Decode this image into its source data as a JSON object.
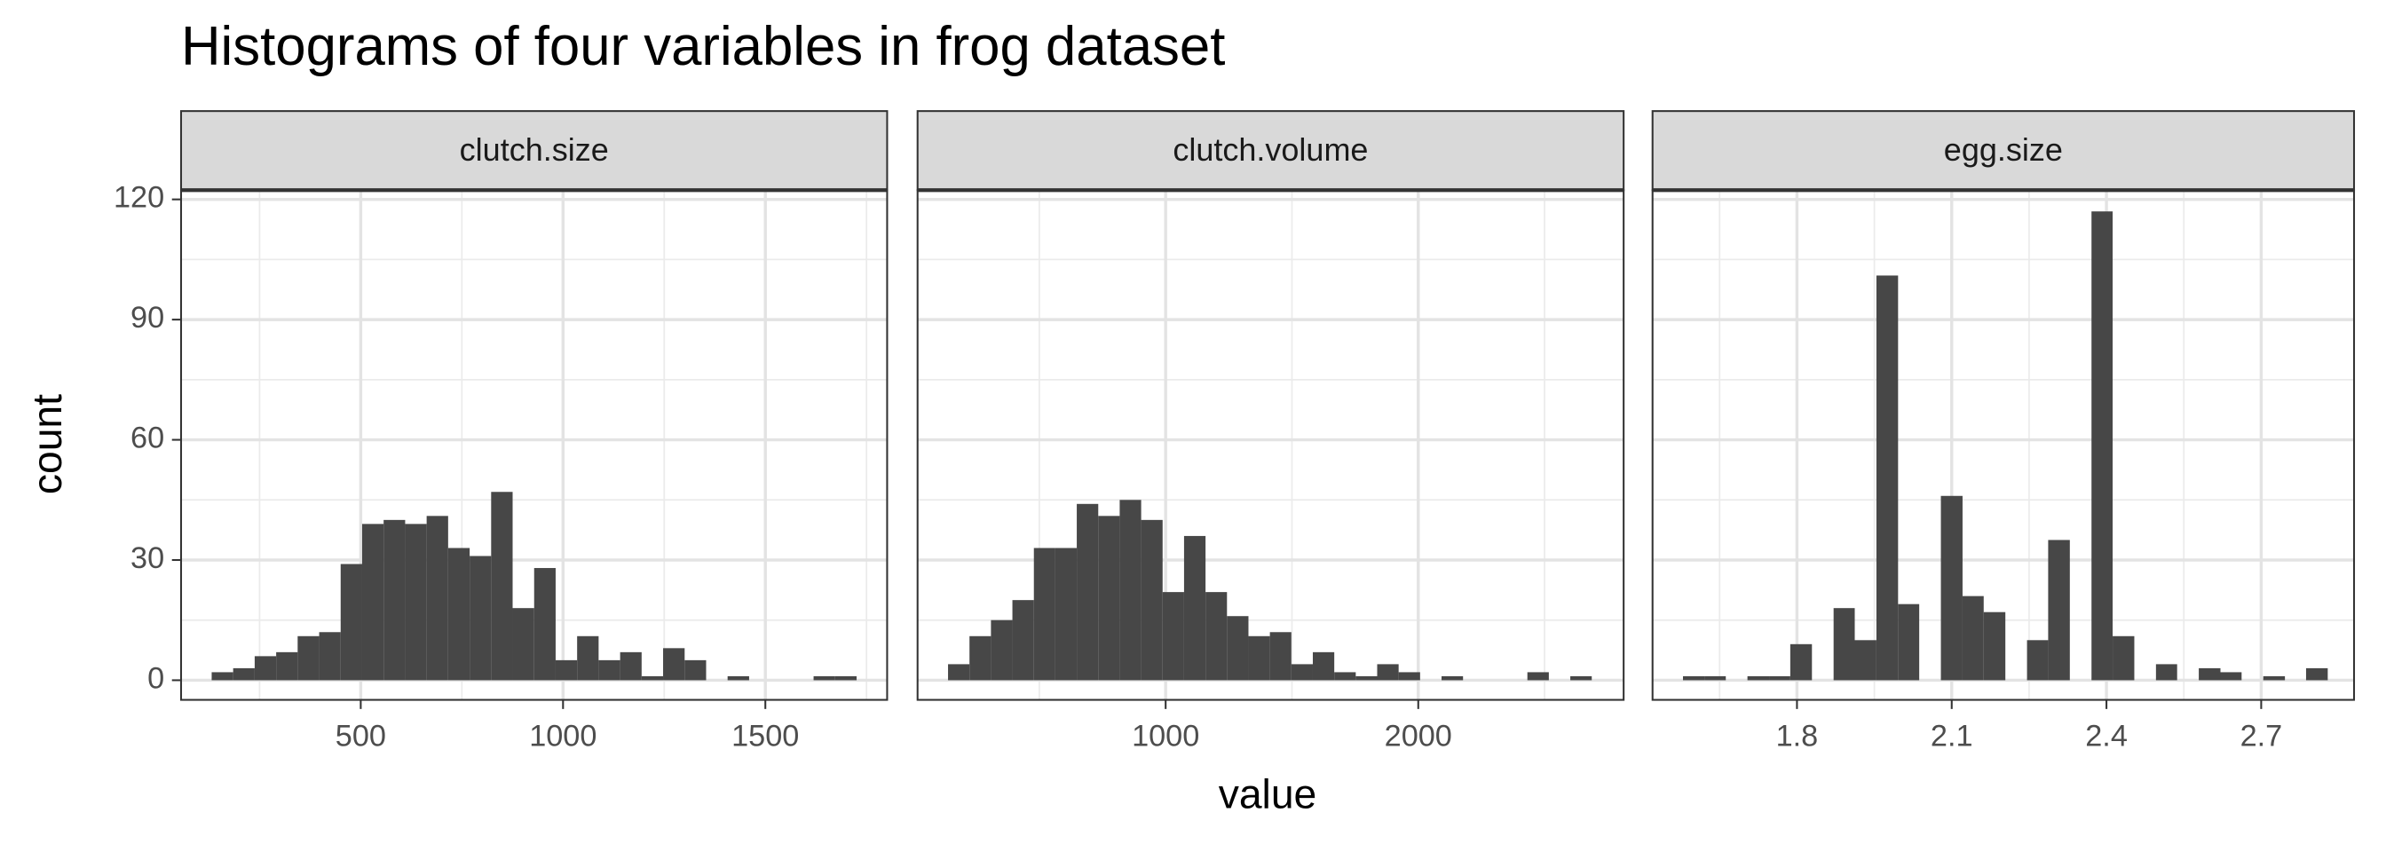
{
  "title": "Histograms of four variables in frog dataset",
  "x_label": "value",
  "y_label": "count",
  "chart_data": [
    {
      "type": "histogram",
      "title": "clutch.size",
      "color": "#474747",
      "grid": true,
      "bins": [
        131.6,
        184.7,
        237.9,
        291.0,
        344.1,
        397.3,
        450.4,
        503.5,
        556.6,
        609.8,
        662.9,
        716.0,
        769.2,
        822.3,
        875.4,
        928.6,
        981.7,
        1034.8,
        1087.9,
        1141.1,
        1194.2,
        1247.3,
        1300.5,
        1353.6,
        1406.7,
        1459.9,
        1513.0,
        1566.1,
        1619.2,
        1672.4,
        1725.5
      ],
      "counts": [
        2,
        3,
        6,
        7,
        11,
        12,
        29,
        39,
        40,
        39,
        41,
        33,
        31,
        47,
        18,
        28,
        5,
        11,
        5,
        7,
        1,
        8,
        5,
        0,
        1,
        0,
        0,
        0,
        1,
        1
      ],
      "xlim": [
        56,
        1801
      ],
      "xticks": [
        500,
        1000,
        1500
      ],
      "xminor": [
        250,
        750,
        1250,
        1750
      ],
      "ylim": [
        -4.9,
        122.3
      ],
      "yticks": [
        0,
        30,
        60,
        90,
        120
      ],
      "yminor": [
        15,
        45,
        75,
        105
      ]
    },
    {
      "type": "histogram",
      "title": "clutch.volume",
      "color": "#474747",
      "grid": true,
      "bins": [
        138.6,
        223.5,
        308.5,
        393.4,
        478.4,
        563.3,
        648.2,
        733.2,
        818.1,
        903.1,
        988.0,
        1072.9,
        1157.9,
        1242.8,
        1327.8,
        1412.7,
        1497.6,
        1582.6,
        1667.5,
        1752.5,
        1837.4,
        1922.3,
        2007.3,
        2092.2,
        2177.2,
        2262.1,
        2347.0,
        2432.0,
        2516.9,
        2601.9,
        2686.8
      ],
      "counts": [
        4,
        11,
        15,
        20,
        33,
        33,
        44,
        41,
        45,
        40,
        22,
        36,
        22,
        16,
        11,
        12,
        4,
        7,
        2,
        1,
        4,
        2,
        0,
        1,
        0,
        0,
        0,
        2,
        0,
        1
      ],
      "xlim": [
        18,
        2813
      ],
      "xticks": [
        1000,
        2000
      ],
      "xminor": [
        500,
        1500,
        2500
      ],
      "ylim": [
        -4.9,
        122.3
      ],
      "yticks": [
        0,
        30,
        60,
        90,
        120
      ],
      "yminor": [
        15,
        45,
        75,
        105
      ]
    },
    {
      "type": "histogram",
      "title": "egg.size",
      "color": "#474747",
      "grid": true,
      "bins": [
        1.579,
        1.621,
        1.662,
        1.704,
        1.746,
        1.787,
        1.829,
        1.871,
        1.912,
        1.954,
        1.996,
        2.037,
        2.079,
        2.121,
        2.162,
        2.204,
        2.246,
        2.287,
        2.329,
        2.371,
        2.412,
        2.454,
        2.496,
        2.537,
        2.579,
        2.621,
        2.662,
        2.704,
        2.746,
        2.787,
        2.829
      ],
      "counts": [
        1,
        1,
        0,
        1,
        1,
        9,
        0,
        18,
        10,
        101,
        19,
        0,
        46,
        21,
        17,
        0,
        10,
        35,
        0,
        117,
        11,
        0,
        4,
        0,
        3,
        2,
        0,
        1,
        0,
        3
      ],
      "xlim": [
        1.52,
        2.88
      ],
      "xticks": [
        1.8,
        2.1,
        2.4,
        2.7
      ],
      "xminor": [
        1.65,
        1.95,
        2.25,
        2.55
      ],
      "ylim": [
        -4.9,
        122.3
      ],
      "yticks": [
        0,
        30,
        60,
        90,
        120
      ],
      "yminor": [
        15,
        45,
        75,
        105
      ]
    }
  ]
}
